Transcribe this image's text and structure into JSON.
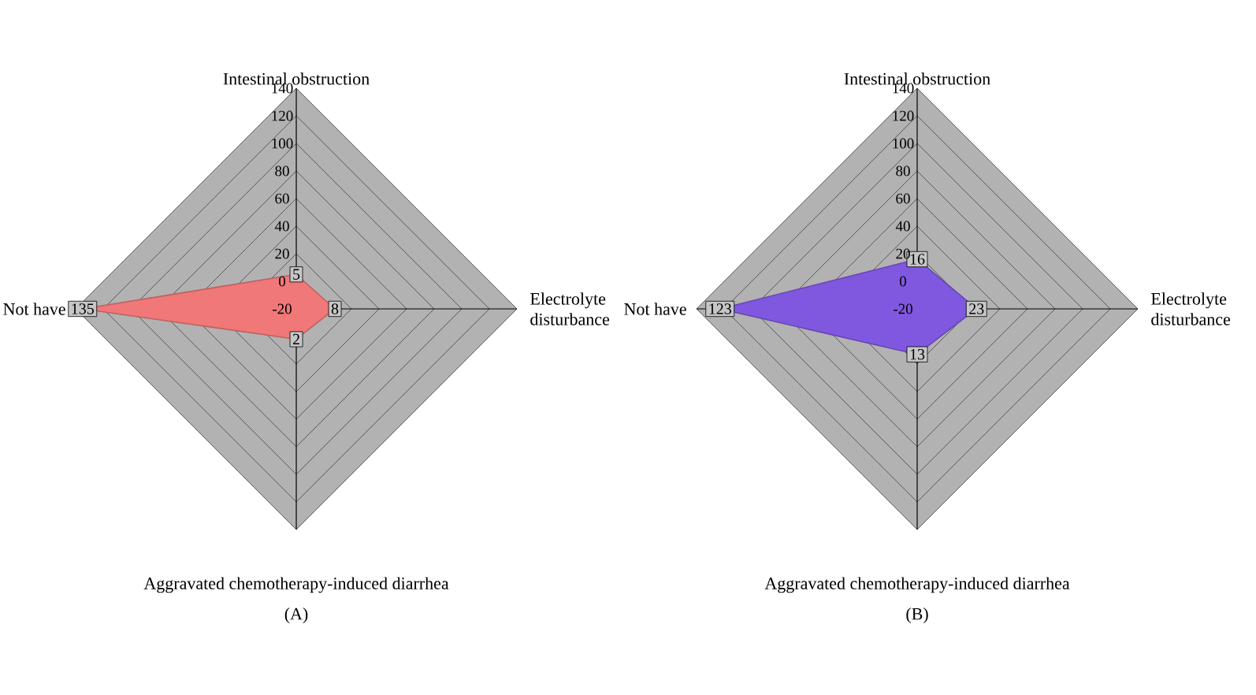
{
  "chart_data": [
    {
      "type": "radar",
      "title": "(A)",
      "categories": [
        "Intestinal obstruction",
        "Electrolyte disturbance",
        "Aggravated chemotherapy-induced diarrhea",
        "Not have"
      ],
      "series": [
        {
          "color": "#f07878",
          "values": [
            5,
            8,
            2,
            135
          ]
        }
      ],
      "ylim": [
        -20,
        140
      ],
      "yticks": [
        -20,
        0,
        20,
        40,
        60,
        80,
        100,
        120,
        140
      ],
      "grid": true,
      "data_labels": true
    },
    {
      "type": "radar",
      "title": "(B)",
      "categories": [
        "Intestinal obstruction",
        "Electrolyte disturbance",
        "Aggravated chemotherapy-induced diarrhea",
        "Not have"
      ],
      "series": [
        {
          "color": "#8058e0",
          "values": [
            16,
            23,
            13,
            123
          ]
        }
      ],
      "ylim": [
        -20,
        140
      ],
      "yticks": [
        -20,
        0,
        20,
        40,
        60,
        80,
        100,
        120,
        140
      ],
      "grid": true,
      "data_labels": true
    }
  ]
}
